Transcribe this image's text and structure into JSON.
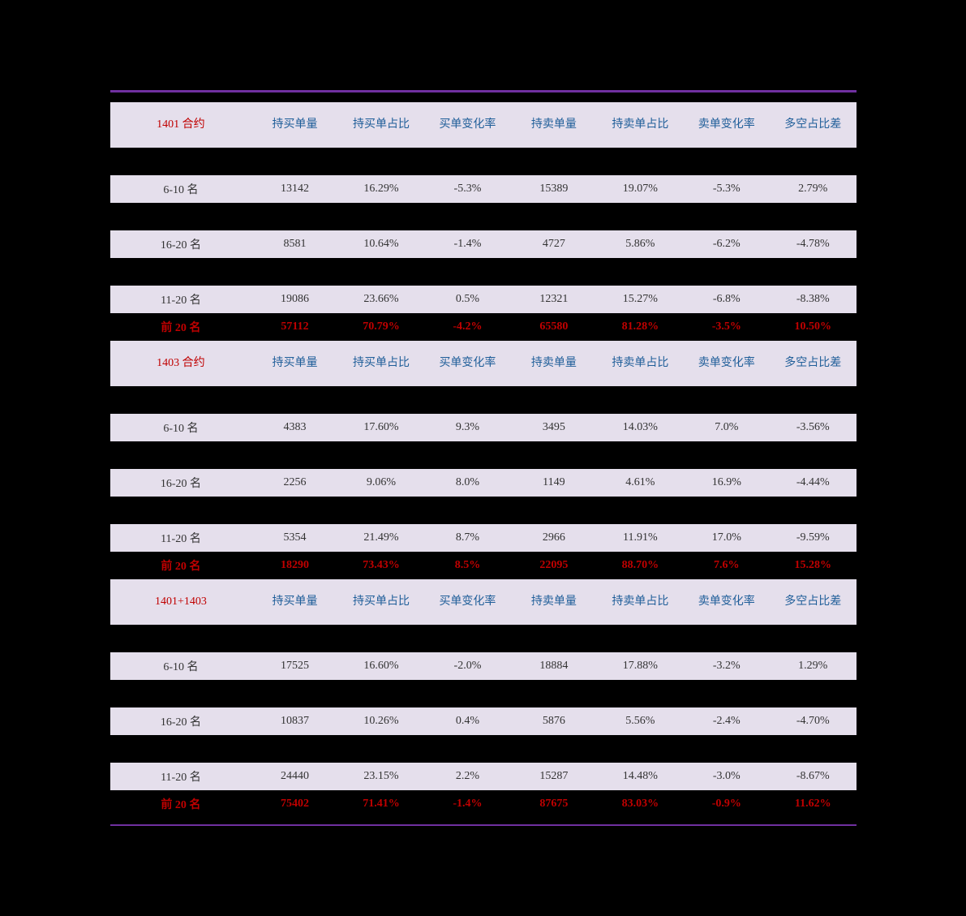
{
  "colors": {
    "background": "#000000",
    "banded": "#e5dfec",
    "border": "#7030a0",
    "header_text": "#1f5e99",
    "section_label": "#c00000",
    "data_text": "#333333",
    "total_text": "#c00000"
  },
  "columns": [
    "持买单量",
    "持买单占比",
    "买单变化率",
    "持卖单量",
    "持卖单占比",
    "卖单变化率",
    "多空占比差"
  ],
  "sections": [
    {
      "label": "1401 合约",
      "rows": [
        {
          "label": "",
          "c": [
            "",
            "",
            "",
            "",
            "",
            "",
            ""
          ]
        },
        {
          "label": "6-10 名",
          "c": [
            "13142",
            "16.29%",
            "-5.3%",
            "15389",
            "19.07%",
            "-5.3%",
            "2.79%"
          ]
        },
        {
          "label": "",
          "c": [
            "",
            "",
            "",
            "",
            "",
            "",
            ""
          ]
        },
        {
          "label": "16-20 名",
          "c": [
            "8581",
            "10.64%",
            "-1.4%",
            "4727",
            "5.86%",
            "-6.2%",
            "-4.78%"
          ]
        },
        {
          "label": "",
          "c": [
            "",
            "",
            "",
            "",
            "",
            "",
            ""
          ]
        },
        {
          "label": "11-20 名",
          "c": [
            "19086",
            "23.66%",
            "0.5%",
            "12321",
            "15.27%",
            "-6.8%",
            "-8.38%"
          ]
        }
      ],
      "total": {
        "label": "前 20 名",
        "c": [
          "57112",
          "70.79%",
          "-4.2%",
          "65580",
          "81.28%",
          "-3.5%",
          "10.50%"
        ]
      }
    },
    {
      "label": "1403 合约",
      "rows": [
        {
          "label": "",
          "c": [
            "",
            "",
            "",
            "",
            "",
            "",
            ""
          ]
        },
        {
          "label": "6-10 名",
          "c": [
            "4383",
            "17.60%",
            "9.3%",
            "3495",
            "14.03%",
            "7.0%",
            "-3.56%"
          ]
        },
        {
          "label": "",
          "c": [
            "",
            "",
            "",
            "",
            "",
            "",
            ""
          ]
        },
        {
          "label": "16-20 名",
          "c": [
            "2256",
            "9.06%",
            "8.0%",
            "1149",
            "4.61%",
            "16.9%",
            "-4.44%"
          ]
        },
        {
          "label": "",
          "c": [
            "",
            "",
            "",
            "",
            "",
            "",
            ""
          ]
        },
        {
          "label": "11-20 名",
          "c": [
            "5354",
            "21.49%",
            "8.7%",
            "2966",
            "11.91%",
            "17.0%",
            "-9.59%"
          ]
        }
      ],
      "total": {
        "label": "前 20 名",
        "c": [
          "18290",
          "73.43%",
          "8.5%",
          "22095",
          "88.70%",
          "7.6%",
          "15.28%"
        ]
      }
    },
    {
      "label": "1401+1403",
      "rows": [
        {
          "label": "",
          "c": [
            "",
            "",
            "",
            "",
            "",
            "",
            ""
          ]
        },
        {
          "label": "6-10 名",
          "c": [
            "17525",
            "16.60%",
            "-2.0%",
            "18884",
            "17.88%",
            "-3.2%",
            "1.29%"
          ]
        },
        {
          "label": "",
          "c": [
            "",
            "",
            "",
            "",
            "",
            "",
            ""
          ]
        },
        {
          "label": "16-20 名",
          "c": [
            "10837",
            "10.26%",
            "0.4%",
            "5876",
            "5.56%",
            "-2.4%",
            "-4.70%"
          ]
        },
        {
          "label": "",
          "c": [
            "",
            "",
            "",
            "",
            "",
            "",
            ""
          ]
        },
        {
          "label": "11-20 名",
          "c": [
            "24440",
            "23.15%",
            "2.2%",
            "15287",
            "14.48%",
            "-3.0%",
            "-8.67%"
          ]
        }
      ],
      "total": {
        "label": "前 20 名",
        "c": [
          "75402",
          "71.41%",
          "-1.4%",
          "87675",
          "83.03%",
          "-0.9%",
          "11.62%"
        ]
      }
    }
  ]
}
